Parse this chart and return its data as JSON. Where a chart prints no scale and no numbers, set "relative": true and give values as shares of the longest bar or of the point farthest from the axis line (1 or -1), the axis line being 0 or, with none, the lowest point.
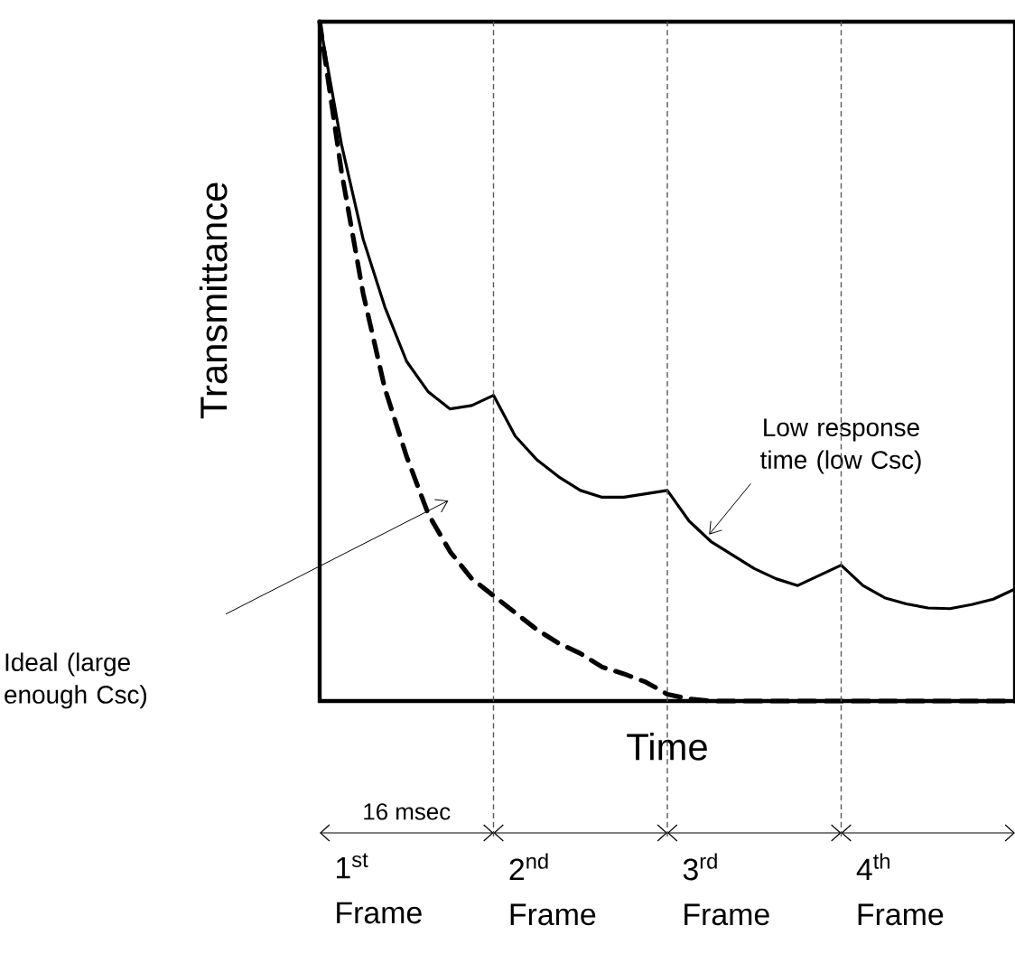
{
  "chart_data": {
    "type": "line",
    "relative": true,
    "xlabel": "Time",
    "ylabel": "Transmittance",
    "categories": [
      null,
      null,
      null,
      null,
      null,
      null,
      null,
      null,
      null,
      null,
      null,
      null,
      null,
      null,
      null,
      null,
      null,
      null,
      null,
      null,
      null,
      null,
      null,
      null,
      null,
      null,
      null,
      null,
      null,
      null,
      null,
      null,
      null
    ],
    "series": [
      {
        "color": "#000000",
        "line_style": "solid",
        "values": [
          1.0,
          0.82,
          0.68,
          0.58,
          0.5,
          0.455,
          0.43,
          0.435,
          0.45,
          0.39,
          0.355,
          0.33,
          0.31,
          0.3,
          0.3,
          0.305,
          0.31,
          0.265,
          0.235,
          0.215,
          0.195,
          0.18,
          0.17,
          0.185,
          0.2,
          0.17,
          0.152,
          0.143,
          0.137,
          0.136,
          0.142,
          0.15,
          0.165
        ]
      },
      {
        "color": "#000000",
        "line_style": "dashed",
        "values": [
          1.0,
          0.78,
          0.6,
          0.46,
          0.36,
          0.275,
          0.22,
          0.18,
          0.155,
          0.13,
          0.105,
          0.085,
          0.07,
          0.05,
          0.04,
          0.028,
          0.01,
          0.003,
          0,
          0,
          0,
          0,
          0,
          0,
          0,
          0,
          0,
          0,
          0,
          0,
          0,
          0,
          0
        ]
      }
    ],
    "annotations": [
      "Low response time (low Csc)",
      "Ideal (large enough Csc)",
      "16 msec",
      "1$^{st}$ Frame",
      "2$^{nd}$ Frame",
      "3$^{rd}$ Frame",
      "4$^{th}$ Frame"
    ],
    "grid": "x",
    "marker": "none"
  }
}
